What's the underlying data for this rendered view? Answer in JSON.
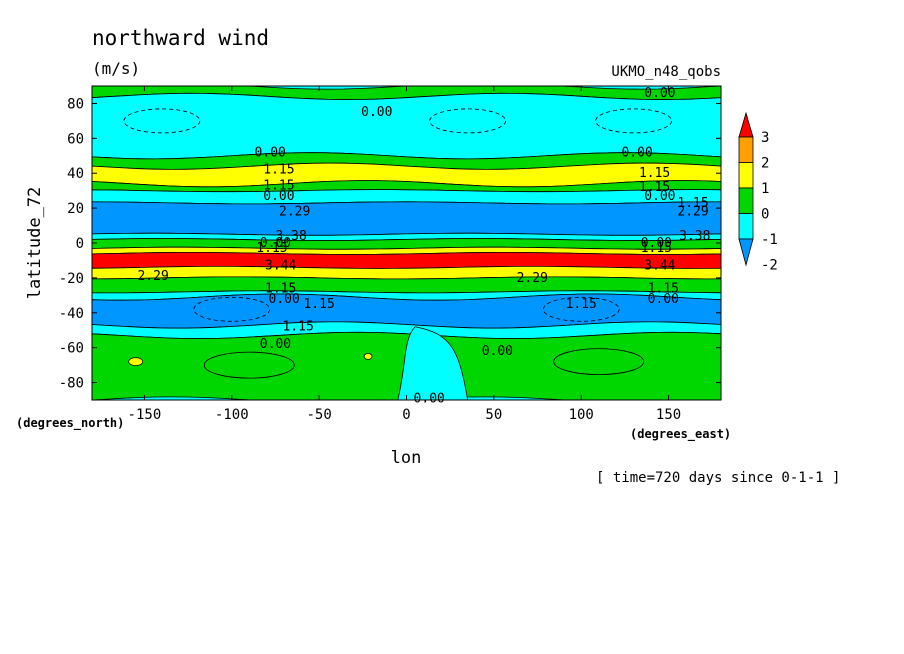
{
  "chart_data": {
    "type": "heatmap",
    "title": "northward wind",
    "units": "(m/s)",
    "dataset": "UKMO_n48_qobs",
    "xlabel": "lon",
    "ylabel": "latitude_72",
    "x_units": "(degrees_east)",
    "y_units": "(degrees_north)",
    "time_note": "[ time=720 days since 0-1-1 ]",
    "xlim": [
      -180,
      180
    ],
    "ylim": [
      -90,
      90
    ],
    "xticks": [
      "-150",
      "-100",
      "-50",
      "0",
      "50",
      "100",
      "150"
    ],
    "xtick_values": [
      -150,
      -100,
      -50,
      0,
      50,
      100,
      150
    ],
    "yticks": [
      "80",
      "60",
      "40",
      "20",
      "0",
      "-20",
      "-40",
      "-60",
      "-80"
    ],
    "ytick_values": [
      80,
      60,
      40,
      20,
      0,
      -20,
      -40,
      -60,
      -80
    ],
    "colorbar": {
      "labels": [
        "3",
        "2",
        "1",
        "0",
        "-1",
        "-2"
      ],
      "levels": [
        3,
        2,
        1,
        0,
        -1,
        -2
      ],
      "colors": [
        "#ff0000",
        "#ff9f00",
        "#ffff00",
        "#00d600",
        "#00ffff",
        "#0096ff"
      ],
      "extend": "both"
    },
    "bands": [
      {
        "lat_top": 90,
        "lat_bottom": 84,
        "value": 0.5
      },
      {
        "lat_top": 84,
        "lat_bottom": 50,
        "value": -0.5
      },
      {
        "lat_top": 50,
        "lat_bottom": 44,
        "value": 0.5
      },
      {
        "lat_top": 44,
        "lat_bottom": 34,
        "value": 1.5
      },
      {
        "lat_top": 34,
        "lat_bottom": 30,
        "value": 0.5
      },
      {
        "lat_top": 30,
        "lat_bottom": 23,
        "value": -0.5
      },
      {
        "lat_top": 23,
        "lat_bottom": 5,
        "value": -1.5
      },
      {
        "lat_top": 5,
        "lat_bottom": 2,
        "value": -0.5
      },
      {
        "lat_top": 2,
        "lat_bottom": -3,
        "value": 0.5
      },
      {
        "lat_top": -3,
        "lat_bottom": -6,
        "value": 1.5
      },
      {
        "lat_top": -6,
        "lat_bottom": -14,
        "value": 2.5
      },
      {
        "lat_top": -14,
        "lat_bottom": -20,
        "value": 1.5
      },
      {
        "lat_top": -20,
        "lat_bottom": -28,
        "value": 0.5
      },
      {
        "lat_top": -28,
        "lat_bottom": -31,
        "value": -0.5
      },
      {
        "lat_top": -31,
        "lat_bottom": -47,
        "value": -1.5
      },
      {
        "lat_top": -47,
        "lat_bottom": -53,
        "value": -0.5
      },
      {
        "lat_top": -53,
        "lat_bottom": -90,
        "value": 0.5
      }
    ],
    "contour_labels": [
      {
        "text": "0.00",
        "lon": -17,
        "lat": 75
      },
      {
        "text": "0.00",
        "lon": 145,
        "lat": 86
      },
      {
        "text": "0.00",
        "lon": -78,
        "lat": 52
      },
      {
        "text": "0.00",
        "lon": 132,
        "lat": 52
      },
      {
        "text": "1.15",
        "lon": -73,
        "lat": 42
      },
      {
        "text": "1.15",
        "lon": 142,
        "lat": 40
      },
      {
        "text": "1.15",
        "lon": -73,
        "lat": 33
      },
      {
        "text": "1.15",
        "lon": 142,
        "lat": 32
      },
      {
        "text": "0.00",
        "lon": -73,
        "lat": 27
      },
      {
        "text": "0.00",
        "lon": 145,
        "lat": 27
      },
      {
        "text": "2.29",
        "lon": -64,
        "lat": 18
      },
      {
        "text": "2.29",
        "lon": 164,
        "lat": 18
      },
      {
        "text": "1.15",
        "lon": 164,
        "lat": 23
      },
      {
        "text": "3.38",
        "lon": -66,
        "lat": 4
      },
      {
        "text": "3.38",
        "lon": 165,
        "lat": 4
      },
      {
        "text": "0.00",
        "lon": -75,
        "lat": 0
      },
      {
        "text": "0.00",
        "lon": 143,
        "lat": 0
      },
      {
        "text": "1.15",
        "lon": -77,
        "lat": -3
      },
      {
        "text": "1.15",
        "lon": 143,
        "lat": -3
      },
      {
        "text": "3.44",
        "lon": -72,
        "lat": -13
      },
      {
        "text": "3.44",
        "lon": 145,
        "lat": -13
      },
      {
        "text": "2.29",
        "lon": -145,
        "lat": -19
      },
      {
        "text": "2.29",
        "lon": 72,
        "lat": -20
      },
      {
        "text": "1.15",
        "lon": -72,
        "lat": -26
      },
      {
        "text": "1.15",
        "lon": 147,
        "lat": -26
      },
      {
        "text": "0.00",
        "lon": -70,
        "lat": -32
      },
      {
        "text": "0.00",
        "lon": 147,
        "lat": -32
      },
      {
        "text": "1.15",
        "lon": -50,
        "lat": -35
      },
      {
        "text": "1.15",
        "lon": 100,
        "lat": -35
      },
      {
        "text": "1.15",
        "lon": -62,
        "lat": -48
      },
      {
        "text": "0.00",
        "lon": -75,
        "lat": -58
      },
      {
        "text": "0.00",
        "lon": 52,
        "lat": -62
      },
      {
        "text": "0.00",
        "lon": 13,
        "lat": -89
      }
    ]
  }
}
